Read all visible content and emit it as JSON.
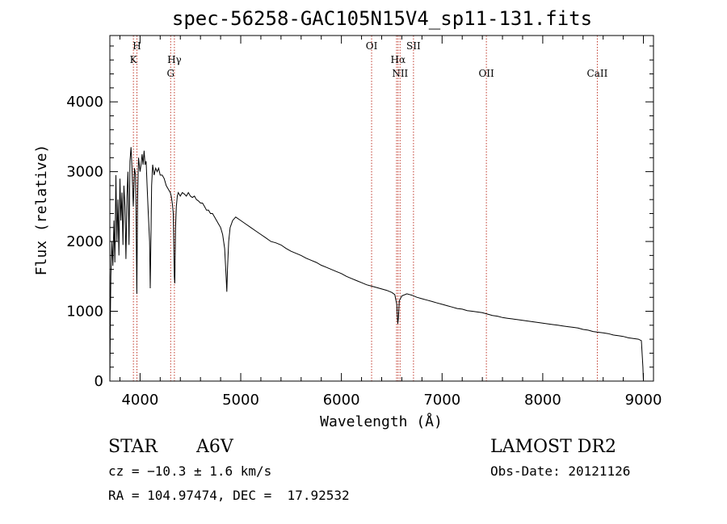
{
  "chart_data": {
    "type": "line",
    "title": "spec-56258-GAC105N15V4_sp11-131.fits",
    "xlabel": "Wavelength (Å)",
    "ylabel": "Flux (relative)",
    "xlim": [
      3700,
      9100
    ],
    "ylim": [
      0,
      4950
    ],
    "x_ticks": [
      4000,
      5000,
      6000,
      7000,
      8000,
      9000
    ],
    "y_ticks": [
      0,
      1000,
      2000,
      3000,
      4000
    ],
    "line_color": "#000000",
    "marker_color": "#c0392b",
    "series": [
      {
        "points": [
          [
            3700,
            0
          ],
          [
            3705,
            880
          ],
          [
            3710,
            1500
          ],
          [
            3720,
            2000
          ],
          [
            3730,
            1650
          ],
          [
            3740,
            2300
          ],
          [
            3750,
            1700
          ],
          [
            3760,
            2950
          ],
          [
            3770,
            2000
          ],
          [
            3780,
            2600
          ],
          [
            3790,
            1800
          ],
          [
            3800,
            2900
          ],
          [
            3810,
            2300
          ],
          [
            3820,
            2700
          ],
          [
            3830,
            1950
          ],
          [
            3840,
            2800
          ],
          [
            3850,
            2500
          ],
          [
            3860,
            1750
          ],
          [
            3870,
            2650
          ],
          [
            3880,
            3000
          ],
          [
            3890,
            1950
          ],
          [
            3900,
            3150
          ],
          [
            3910,
            3350
          ],
          [
            3920,
            3050
          ],
          [
            3933,
            2500
          ],
          [
            3945,
            3050
          ],
          [
            3955,
            2950
          ],
          [
            3960,
            2450
          ],
          [
            3968,
            1250
          ],
          [
            3975,
            2600
          ],
          [
            3985,
            3200
          ],
          [
            4000,
            3000
          ],
          [
            4010,
            3100
          ],
          [
            4020,
            3250
          ],
          [
            4030,
            3100
          ],
          [
            4040,
            3300
          ],
          [
            4050,
            3100
          ],
          [
            4060,
            3150
          ],
          [
            4070,
            2800
          ],
          [
            4080,
            2450
          ],
          [
            4095,
            2000
          ],
          [
            4101,
            1330
          ],
          [
            4108,
            2000
          ],
          [
            4115,
            2800
          ],
          [
            4125,
            3100
          ],
          [
            4140,
            2950
          ],
          [
            4155,
            3050
          ],
          [
            4170,
            3000
          ],
          [
            4185,
            3050
          ],
          [
            4200,
            2950
          ],
          [
            4220,
            2950
          ],
          [
            4240,
            2900
          ],
          [
            4260,
            2800
          ],
          [
            4280,
            2750
          ],
          [
            4300,
            2700
          ],
          [
            4310,
            2650
          ],
          [
            4320,
            2550
          ],
          [
            4330,
            2400
          ],
          [
            4340,
            1500
          ],
          [
            4345,
            1400
          ],
          [
            4352,
            2200
          ],
          [
            4360,
            2500
          ],
          [
            4370,
            2650
          ],
          [
            4380,
            2700
          ],
          [
            4400,
            2650
          ],
          [
            4420,
            2700
          ],
          [
            4440,
            2680
          ],
          [
            4460,
            2650
          ],
          [
            4480,
            2700
          ],
          [
            4500,
            2650
          ],
          [
            4520,
            2630
          ],
          [
            4540,
            2650
          ],
          [
            4560,
            2600
          ],
          [
            4580,
            2580
          ],
          [
            4600,
            2550
          ],
          [
            4620,
            2550
          ],
          [
            4640,
            2500
          ],
          [
            4660,
            2450
          ],
          [
            4680,
            2450
          ],
          [
            4700,
            2400
          ],
          [
            4720,
            2400
          ],
          [
            4740,
            2350
          ],
          [
            4760,
            2300
          ],
          [
            4780,
            2250
          ],
          [
            4800,
            2200
          ],
          [
            4820,
            2100
          ],
          [
            4840,
            1900
          ],
          [
            4855,
            1500
          ],
          [
            4862,
            1280
          ],
          [
            4868,
            1600
          ],
          [
            4880,
            2000
          ],
          [
            4895,
            2200
          ],
          [
            4920,
            2300
          ],
          [
            4950,
            2350
          ],
          [
            5000,
            2300
          ],
          [
            5050,
            2250
          ],
          [
            5100,
            2200
          ],
          [
            5150,
            2150
          ],
          [
            5200,
            2100
          ],
          [
            5250,
            2050
          ],
          [
            5300,
            2000
          ],
          [
            5350,
            1980
          ],
          [
            5400,
            1950
          ],
          [
            5450,
            1900
          ],
          [
            5500,
            1860
          ],
          [
            5550,
            1830
          ],
          [
            5600,
            1800
          ],
          [
            5650,
            1760
          ],
          [
            5700,
            1730
          ],
          [
            5750,
            1700
          ],
          [
            5800,
            1660
          ],
          [
            5850,
            1630
          ],
          [
            5900,
            1600
          ],
          [
            5950,
            1570
          ],
          [
            6000,
            1540
          ],
          [
            6050,
            1500
          ],
          [
            6100,
            1470
          ],
          [
            6150,
            1440
          ],
          [
            6200,
            1410
          ],
          [
            6250,
            1380
          ],
          [
            6300,
            1360
          ],
          [
            6350,
            1340
          ],
          [
            6400,
            1320
          ],
          [
            6450,
            1300
          ],
          [
            6500,
            1270
          ],
          [
            6530,
            1240
          ],
          [
            6550,
            1100
          ],
          [
            6560,
            820
          ],
          [
            6566,
            900
          ],
          [
            6575,
            1150
          ],
          [
            6600,
            1220
          ],
          [
            6650,
            1250
          ],
          [
            6700,
            1230
          ],
          [
            6750,
            1200
          ],
          [
            6800,
            1180
          ],
          [
            6850,
            1160
          ],
          [
            6900,
            1140
          ],
          [
            6950,
            1120
          ],
          [
            7000,
            1100
          ],
          [
            7050,
            1080
          ],
          [
            7100,
            1060
          ],
          [
            7150,
            1040
          ],
          [
            7200,
            1030
          ],
          [
            7250,
            1010
          ],
          [
            7300,
            1000
          ],
          [
            7350,
            990
          ],
          [
            7400,
            980
          ],
          [
            7450,
            960
          ],
          [
            7500,
            940
          ],
          [
            7550,
            930
          ],
          [
            7600,
            910
          ],
          [
            7650,
            900
          ],
          [
            7700,
            890
          ],
          [
            7750,
            880
          ],
          [
            7800,
            870
          ],
          [
            7850,
            860
          ],
          [
            7900,
            850
          ],
          [
            7950,
            840
          ],
          [
            8000,
            830
          ],
          [
            8050,
            820
          ],
          [
            8100,
            810
          ],
          [
            8150,
            800
          ],
          [
            8200,
            790
          ],
          [
            8250,
            780
          ],
          [
            8300,
            770
          ],
          [
            8350,
            760
          ],
          [
            8400,
            740
          ],
          [
            8450,
            730
          ],
          [
            8500,
            710
          ],
          [
            8550,
            700
          ],
          [
            8600,
            690
          ],
          [
            8650,
            680
          ],
          [
            8700,
            660
          ],
          [
            8750,
            650
          ],
          [
            8800,
            640
          ],
          [
            8850,
            620
          ],
          [
            8900,
            610
          ],
          [
            8950,
            600
          ],
          [
            8980,
            580
          ],
          [
            8995,
            200
          ],
          [
            9000,
            0
          ]
        ]
      }
    ],
    "spectral_lines": [
      {
        "x": 3934,
        "label": "K",
        "label_row": 2
      },
      {
        "x": 3969,
        "label": "H",
        "label_row": 1
      },
      {
        "x": 4304,
        "label": "G",
        "label_row": 4
      },
      {
        "x": 4341,
        "label": "Hγ",
        "label_row": 3
      },
      {
        "x": 6300,
        "label": "OI",
        "label_row": 1
      },
      {
        "x": 6548,
        "label": "",
        "label_row": 0
      },
      {
        "x": 6563,
        "label": "Hα",
        "label_row": 3
      },
      {
        "x": 6583,
        "label": "NII",
        "label_row": 4
      },
      {
        "x": 6716,
        "label": "SII",
        "label_row": 1
      },
      {
        "x": 7440,
        "label": "OII",
        "label_row": 4
      },
      {
        "x": 8542,
        "label": "CaII",
        "label_row": 4
      }
    ]
  },
  "info": {
    "object_type": "STAR",
    "spectral_class": "A6V",
    "survey": "LAMOST DR2",
    "redshift": "cz = −10.3 ± 1.6 km/s",
    "obs_date": "Obs-Date: 20121126",
    "coords": "RA = 104.97474, DEC =  17.92532"
  }
}
